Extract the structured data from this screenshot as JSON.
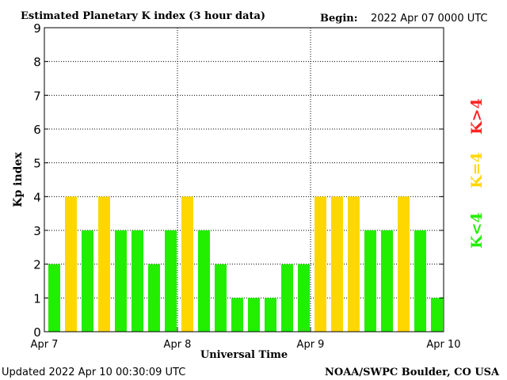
{
  "header": {
    "title": "Estimated Planetary K index (3 hour data)",
    "begin_label": "Begin:",
    "begin_value": "2022 Apr 07 0000 UTC"
  },
  "footer": {
    "updated": "Updated 2022 Apr 10 00:30:09 UTC",
    "source": "NOAA/SWPC Boulder, CO USA"
  },
  "legend": {
    "high": "K>4",
    "equal": "K=4",
    "low": "K<4"
  },
  "colors": {
    "low": "#22ee00",
    "equal": "#ffd700",
    "high": "#ff2222",
    "axis": "#000000",
    "grid": "#000000"
  },
  "chart_data": {
    "type": "bar",
    "title": "Estimated Planetary K index (3 hour data)",
    "xlabel": "Universal Time",
    "ylabel": "Kp index",
    "ylim": [
      0,
      9
    ],
    "yticks": [
      "0",
      "1",
      "2",
      "3",
      "4",
      "5",
      "6",
      "7",
      "8",
      "9"
    ],
    "xticks": [
      "Apr 7",
      "Apr 8",
      "Apr 9",
      "Apr 10"
    ],
    "interval_hours": 3,
    "grid": true,
    "values": [
      2,
      4,
      3,
      4,
      3,
      3,
      2,
      3,
      4,
      3,
      2,
      1,
      1,
      1,
      2,
      2,
      4,
      4,
      4,
      3,
      3,
      4,
      3,
      1
    ]
  }
}
